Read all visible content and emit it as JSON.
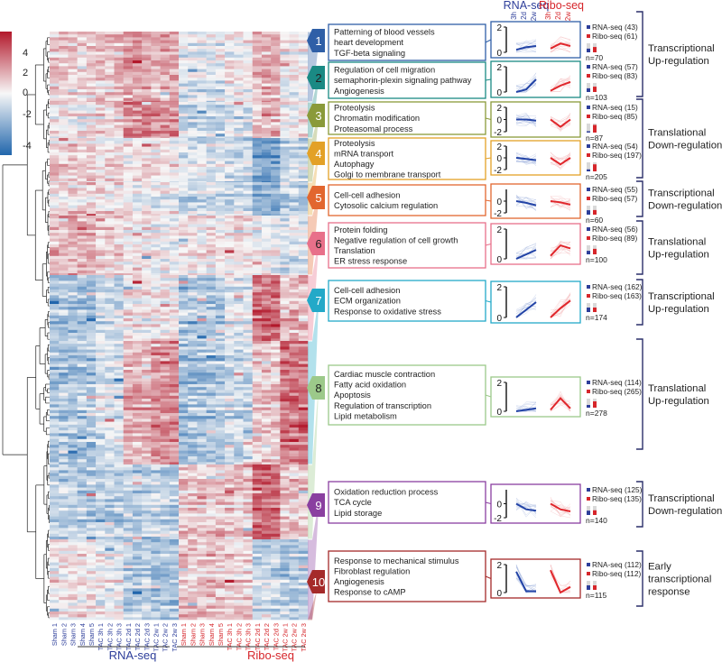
{
  "chart_data": {
    "type": "heatmap",
    "title": "",
    "colorbar": {
      "ticks": [
        4,
        2,
        0,
        -2,
        -4
      ],
      "colors": {
        "high": "#b2182b",
        "mid": "#f7f7f7",
        "low": "#2166ac"
      }
    },
    "columns": [
      {
        "label": "Sham 1",
        "assay": "RNA-seq"
      },
      {
        "label": "Sham 2",
        "assay": "RNA-seq"
      },
      {
        "label": "Sham 3",
        "assay": "RNA-seq"
      },
      {
        "label": "Sham 4",
        "assay": "RNA-seq"
      },
      {
        "label": "Sham 5",
        "assay": "RNA-seq"
      },
      {
        "label": "TAC 3h 1",
        "assay": "RNA-seq"
      },
      {
        "label": "TAC 3h 2",
        "assay": "RNA-seq"
      },
      {
        "label": "TAC 3h 3",
        "assay": "RNA-seq"
      },
      {
        "label": "TAC 2d 1",
        "assay": "RNA-seq"
      },
      {
        "label": "TAC 2d 2",
        "assay": "RNA-seq"
      },
      {
        "label": "TAC 2d 3",
        "assay": "RNA-seq"
      },
      {
        "label": "TAC 2w 1",
        "assay": "RNA-seq"
      },
      {
        "label": "TAC 2w 2",
        "assay": "RNA-seq"
      },
      {
        "label": "TAC 2w 3",
        "assay": "RNA-seq"
      },
      {
        "label": "Sham 1",
        "assay": "Ribo-seq"
      },
      {
        "label": "Sham 2",
        "assay": "Ribo-seq"
      },
      {
        "label": "Sham 3",
        "assay": "Ribo-seq"
      },
      {
        "label": "Sham 4",
        "assay": "Ribo-seq"
      },
      {
        "label": "Sham 5",
        "assay": "Ribo-seq"
      },
      {
        "label": "TAC 3h 1",
        "assay": "Ribo-seq"
      },
      {
        "label": "TAC 3h 2",
        "assay": "Ribo-seq"
      },
      {
        "label": "TAC 3h 3",
        "assay": "Ribo-seq"
      },
      {
        "label": "TAC 2d 1",
        "assay": "Ribo-seq"
      },
      {
        "label": "TAC 2d 2",
        "assay": "Ribo-seq"
      },
      {
        "label": "TAC 2d 3",
        "assay": "Ribo-seq"
      },
      {
        "label": "TAC 2w 1",
        "assay": "Ribo-seq"
      },
      {
        "label": "TAC 2w 2",
        "assay": "Ribo-seq"
      },
      {
        "label": "TAC 2w 3",
        "assay": "Ribo-seq"
      }
    ],
    "group_labels": {
      "rna": "RNA-seq",
      "ribo": "Ribo-seq"
    },
    "trend_header": {
      "rna": "RNA-seq",
      "ribo": "Ribo-seq",
      "rna_times": [
        "3h",
        "2d",
        "2w"
      ],
      "ribo_times": [
        "3h",
        "2d",
        "2w"
      ]
    },
    "clusters": [
      {
        "id": "1",
        "color": "#2f5fa7",
        "terms": [
          "Patterning of blood vessels",
          "heart development",
          "TGF-beta signaling"
        ],
        "n": "n=70",
        "rna_count": "RNA-seq (43)",
        "ribo_count": "Ribo-seq (61)",
        "ylim": [
          0,
          2
        ],
        "yticks": [
          "2",
          "0"
        ],
        "rna_trend": [
          0.2,
          0.4,
          0.5
        ],
        "ribo_trend": [
          0.3,
          0.7,
          0.5
        ],
        "rna_frac": 0.41,
        "ribo_frac": 0.59
      },
      {
        "id": "2",
        "color": "#1a8a84",
        "terms": [
          "Regulation of cell migration",
          "semaphorin-plexin signaling pathway",
          "Angiogenesis"
        ],
        "n": "n=103",
        "rna_count": "RNA-seq (57)",
        "ribo_count": "Ribo-seq (83)",
        "ylim": [
          0,
          2
        ],
        "yticks": [
          "2",
          "0"
        ],
        "rna_trend": [
          0.0,
          0.2,
          1.0
        ],
        "ribo_trend": [
          0.1,
          0.5,
          0.8
        ],
        "rna_frac": 0.41,
        "ribo_frac": 0.59
      },
      {
        "id": "3",
        "color": "#8a9a3a",
        "terms": [
          "Proteolysis",
          "Chromatin modification",
          "Proteasomal process"
        ],
        "n": "n=87",
        "rna_count": "RNA-seq (15)",
        "ribo_count": "Ribo-seq (85)",
        "ylim": [
          -2,
          2
        ],
        "yticks": [
          "2",
          "0",
          "-2"
        ],
        "rna_trend": [
          0.0,
          0.0,
          -0.2
        ],
        "ribo_trend": [
          0.0,
          -1.2,
          0.0
        ],
        "rna_frac": 0.15,
        "ribo_frac": 0.85
      },
      {
        "id": "4",
        "color": "#e3a127",
        "terms": [
          "Proteolysis",
          "mRNA transport",
          "Autophagy",
          "Golgi to membrane transport"
        ],
        "n": "n=205",
        "rna_count": "RNA-seq (54)",
        "ribo_count": "Ribo-seq (197)",
        "ylim": [
          -2,
          2
        ],
        "yticks": [
          "2",
          "0",
          "-2"
        ],
        "rna_trend": [
          0.0,
          -0.2,
          -0.4
        ],
        "ribo_trend": [
          0.0,
          -1.1,
          0.0
        ],
        "rna_frac": 0.22,
        "ribo_frac": 0.78
      },
      {
        "id": "5",
        "color": "#e2662f",
        "terms": [
          "Cell-cell adhesion",
          "Cytosolic calcium regulation"
        ],
        "n": "n=60",
        "rna_count": "RNA-seq (55)",
        "ribo_count": "Ribo-seq (57)",
        "ylim": [
          -2,
          2
        ],
        "yticks": [
          "0",
          "-2"
        ],
        "rna_trend": [
          0.0,
          -0.3,
          -0.7
        ],
        "ribo_trend": [
          0.0,
          -0.2,
          -0.6
        ],
        "rna_frac": 0.49,
        "ribo_frac": 0.51
      },
      {
        "id": "6",
        "color": "#e8708a",
        "terms": [
          "Protein folding",
          "Negative regulation of cell growth",
          "Translation",
          "ER stress response"
        ],
        "n": "n=100",
        "rna_count": "RNA-seq (56)",
        "ribo_count": "Ribo-seq (89)",
        "ylim": [
          0,
          2
        ],
        "yticks": [
          "2",
          "0"
        ],
        "rna_trend": [
          0.0,
          0.3,
          0.6
        ],
        "ribo_trend": [
          0.2,
          0.9,
          0.7
        ],
        "rna_frac": 0.39,
        "ribo_frac": 0.61
      },
      {
        "id": "7",
        "color": "#23a9c8",
        "terms": [
          "Cell-cell adhesion",
          "ECM organization",
          "Response to oxidative stress"
        ],
        "n": "n=174",
        "rna_count": "RNA-seq (162)",
        "ribo_count": "Ribo-seq (163)",
        "ylim": [
          0,
          2
        ],
        "yticks": [
          "2",
          "0"
        ],
        "rna_trend": [
          0.0,
          0.5,
          1.0
        ],
        "ribo_trend": [
          0.0,
          0.6,
          1.1
        ],
        "rna_frac": 0.5,
        "ribo_frac": 0.5
      },
      {
        "id": "8",
        "color": "#9cc98a",
        "terms": [
          "Cardiac muscle contraction",
          "Fatty acid oxidation",
          "Apoptosis",
          "Regulation of transcription",
          "Lipid metabolism"
        ],
        "n": "n=278",
        "rna_count": "RNA-seq (114)",
        "ribo_count": "Ribo-seq (265)",
        "ylim": [
          0,
          2
        ],
        "yticks": [
          "2",
          "0"
        ],
        "rna_trend": [
          0.0,
          0.1,
          0.2
        ],
        "ribo_trend": [
          0.1,
          0.9,
          0.2
        ],
        "rna_frac": 0.3,
        "ribo_frac": 0.7
      },
      {
        "id": "9",
        "color": "#8a3fa0",
        "terms": [
          "Oxidation reduction process",
          "TCA cycle",
          "Lipid storage"
        ],
        "n": "n=140",
        "rna_count": "RNA-seq (125)",
        "ribo_count": "Ribo-seq (135)",
        "ylim": [
          -2,
          2
        ],
        "yticks": [
          "0",
          "-2"
        ],
        "rna_trend": [
          0.0,
          -0.8,
          -1.0
        ],
        "ribo_trend": [
          0.0,
          -0.8,
          -1.1
        ],
        "rna_frac": 0.48,
        "ribo_frac": 0.52
      },
      {
        "id": "10",
        "color": "#a52a2a",
        "terms": [
          "Response to mechanical stimulus",
          "Fibroblast regulation",
          "Angiogenesis",
          "Response to cAMP"
        ],
        "n": "n=115",
        "rna_count": "RNA-seq (112)",
        "ribo_count": "Ribo-seq (112)",
        "ylim": [
          0,
          2
        ],
        "yticks": [
          "2",
          "0"
        ],
        "rna_trend": [
          1.5,
          0.1,
          0.1
        ],
        "ribo_trend": [
          1.6,
          0.0,
          0.4
        ],
        "rna_frac": 0.5,
        "ribo_frac": 0.5
      }
    ],
    "regulation_labels": [
      {
        "lines": [
          "Transcriptional",
          "Up-regulation"
        ],
        "clusters": [
          "1",
          "2"
        ]
      },
      {
        "lines": [
          "Translational",
          "Down-regulation"
        ],
        "clusters": [
          "3",
          "4"
        ]
      },
      {
        "lines": [
          "Transcriptional",
          "Down-regulation"
        ],
        "clusters": [
          "5"
        ]
      },
      {
        "lines": [
          "Translational",
          "Up-regulation"
        ],
        "clusters": [
          "6"
        ]
      },
      {
        "lines": [
          "Transcriptional",
          "Up-regulation"
        ],
        "clusters": [
          "7"
        ]
      },
      {
        "lines": [
          "Translational",
          "Up-regulation"
        ],
        "clusters": [
          "8"
        ]
      },
      {
        "lines": [
          "Transcriptional",
          "Down-regulation"
        ],
        "clusters": [
          "9"
        ]
      },
      {
        "lines": [
          "Early",
          "transcriptional",
          "response"
        ],
        "clusters": [
          "10"
        ]
      }
    ]
  }
}
